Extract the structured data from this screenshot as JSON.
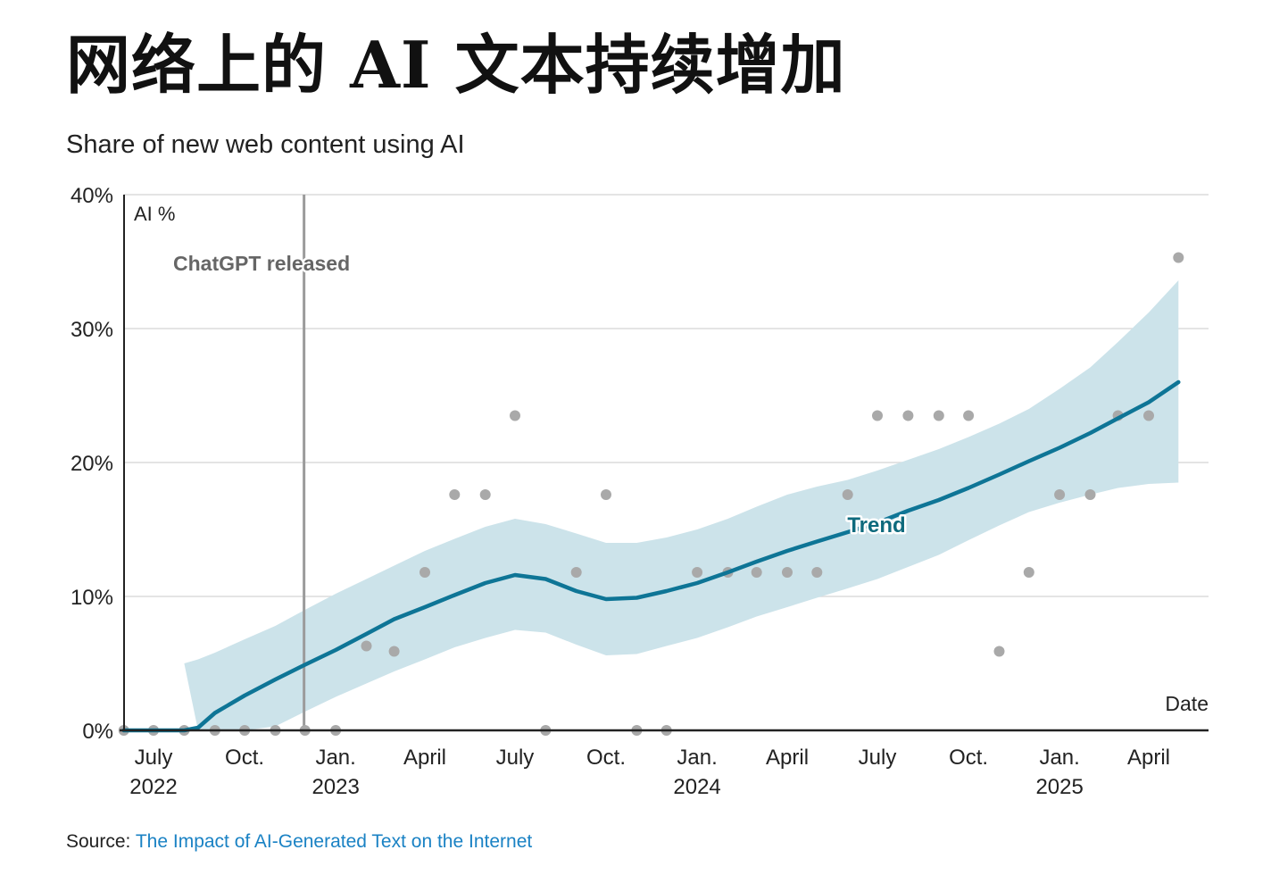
{
  "title": "网络上的 AI 文本持续增加",
  "subtitle": "Share of new web content using AI",
  "source": {
    "prefix": "Source:",
    "link_text": "The Impact of AI-Generated Text on the Internet"
  },
  "colors": {
    "trend": "#0e7596",
    "band": "#cce3ea",
    "points": "#a9a9a9",
    "annotation_line": "#9b9b9b",
    "annotation_text": "#666666",
    "trend_label": "#0e6a7d",
    "gridline": "#dcdcdc",
    "axis": "#222222",
    "source_link": "#1a82c4"
  },
  "chart_data": {
    "type": "scatter",
    "ylabel": "AI %",
    "xlabel": "Date",
    "ylim": [
      0,
      40
    ],
    "xlim": [
      "2022-06-10",
      "2025-06-30"
    ],
    "grid": true,
    "y_ticks": [
      {
        "value": 0,
        "label": "0%"
      },
      {
        "value": 10,
        "label": "10%"
      },
      {
        "value": 20,
        "label": "20%"
      },
      {
        "value": 30,
        "label": "30%"
      },
      {
        "value": 40,
        "label": "40%"
      }
    ],
    "x_ticks": [
      {
        "date": "2022-07-01",
        "label": "July",
        "year": "2022"
      },
      {
        "date": "2022-10-01",
        "label": "Oct.",
        "year": ""
      },
      {
        "date": "2023-01-01",
        "label": "Jan.",
        "year": "2023"
      },
      {
        "date": "2023-04-01",
        "label": "April",
        "year": ""
      },
      {
        "date": "2023-07-01",
        "label": "July",
        "year": ""
      },
      {
        "date": "2023-10-01",
        "label": "Oct.",
        "year": ""
      },
      {
        "date": "2024-01-01",
        "label": "Jan.",
        "year": "2024"
      },
      {
        "date": "2024-04-01",
        "label": "April",
        "year": ""
      },
      {
        "date": "2024-07-01",
        "label": "July",
        "year": ""
      },
      {
        "date": "2024-10-01",
        "label": "Oct.",
        "year": ""
      },
      {
        "date": "2025-01-01",
        "label": "Jan.",
        "year": "2025"
      },
      {
        "date": "2025-04-01",
        "label": "April",
        "year": ""
      }
    ],
    "annotation": {
      "label": "ChatGPT released",
      "date": "2022-11-30"
    },
    "points": [
      {
        "x": "2022-06-01",
        "y": 0
      },
      {
        "x": "2022-07-01",
        "y": 0
      },
      {
        "x": "2022-08-01",
        "y": 0
      },
      {
        "x": "2022-09-01",
        "y": 0
      },
      {
        "x": "2022-10-01",
        "y": 0
      },
      {
        "x": "2022-11-01",
        "y": 0
      },
      {
        "x": "2022-12-01",
        "y": 0
      },
      {
        "x": "2023-01-01",
        "y": 0
      },
      {
        "x": "2023-02-01",
        "y": 6.3
      },
      {
        "x": "2023-03-01",
        "y": 5.9
      },
      {
        "x": "2023-04-01",
        "y": 11.8
      },
      {
        "x": "2023-05-01",
        "y": 17.6
      },
      {
        "x": "2023-06-01",
        "y": 17.6
      },
      {
        "x": "2023-07-01",
        "y": 23.5
      },
      {
        "x": "2023-08-01",
        "y": 0
      },
      {
        "x": "2023-09-01",
        "y": 11.8
      },
      {
        "x": "2023-10-01",
        "y": 17.6
      },
      {
        "x": "2023-11-01",
        "y": 0
      },
      {
        "x": "2023-12-01",
        "y": 0
      },
      {
        "x": "2024-01-01",
        "y": 11.8
      },
      {
        "x": "2024-02-01",
        "y": 11.8
      },
      {
        "x": "2024-03-01",
        "y": 11.8
      },
      {
        "x": "2024-04-01",
        "y": 11.8
      },
      {
        "x": "2024-05-01",
        "y": 11.8
      },
      {
        "x": "2024-06-01",
        "y": 17.6
      },
      {
        "x": "2024-07-01",
        "y": 23.5
      },
      {
        "x": "2024-08-01",
        "y": 23.5
      },
      {
        "x": "2024-09-01",
        "y": 23.5
      },
      {
        "x": "2024-10-01",
        "y": 23.5
      },
      {
        "x": "2024-11-01",
        "y": 5.9
      },
      {
        "x": "2024-12-01",
        "y": 11.8
      },
      {
        "x": "2025-01-01",
        "y": 17.6
      },
      {
        "x": "2025-02-01",
        "y": 17.6
      },
      {
        "x": "2025-03-01",
        "y": 23.5
      },
      {
        "x": "2025-04-01",
        "y": 23.5
      },
      {
        "x": "2025-05-01",
        "y": 35.3
      }
    ],
    "trend": {
      "label": "Trend",
      "label_date": "2024-06-01",
      "series": [
        {
          "x": "2022-06-01",
          "y": 0.0,
          "low": 3.8,
          "high": 3.8
        },
        {
          "x": "2022-07-01",
          "y": 0.0,
          "low": 4.3,
          "high": 4.3
        },
        {
          "x": "2022-08-01",
          "y": 0.0,
          "low": 5.0,
          "high": 5.0
        },
        {
          "x": "2022-08-15",
          "y": 0.2,
          "low": 0.0,
          "high": 5.3
        },
        {
          "x": "2022-09-01",
          "y": 1.3,
          "low": 0.0,
          "high": 5.8
        },
        {
          "x": "2022-10-01",
          "y": 2.6,
          "low": 0.0,
          "high": 6.8
        },
        {
          "x": "2022-11-01",
          "y": 3.8,
          "low": 0.3,
          "high": 7.8
        },
        {
          "x": "2022-12-01",
          "y": 4.9,
          "low": 1.4,
          "high": 9.0
        },
        {
          "x": "2023-01-01",
          "y": 6.0,
          "low": 2.5,
          "high": 10.2
        },
        {
          "x": "2023-02-01",
          "y": 7.2,
          "low": 3.5,
          "high": 11.3
        },
        {
          "x": "2023-03-01",
          "y": 8.3,
          "low": 4.4,
          "high": 12.3
        },
        {
          "x": "2023-04-01",
          "y": 9.2,
          "low": 5.3,
          "high": 13.4
        },
        {
          "x": "2023-05-01",
          "y": 10.1,
          "low": 6.2,
          "high": 14.3
        },
        {
          "x": "2023-06-01",
          "y": 11.0,
          "low": 6.9,
          "high": 15.2
        },
        {
          "x": "2023-07-01",
          "y": 11.6,
          "low": 7.5,
          "high": 15.8
        },
        {
          "x": "2023-08-01",
          "y": 11.3,
          "low": 7.3,
          "high": 15.4
        },
        {
          "x": "2023-09-01",
          "y": 10.4,
          "low": 6.4,
          "high": 14.7
        },
        {
          "x": "2023-10-01",
          "y": 9.8,
          "low": 5.6,
          "high": 14.0
        },
        {
          "x": "2023-11-01",
          "y": 9.9,
          "low": 5.7,
          "high": 14.0
        },
        {
          "x": "2023-12-01",
          "y": 10.4,
          "low": 6.3,
          "high": 14.4
        },
        {
          "x": "2024-01-01",
          "y": 11.0,
          "low": 6.9,
          "high": 15.0
        },
        {
          "x": "2024-02-01",
          "y": 11.8,
          "low": 7.7,
          "high": 15.8
        },
        {
          "x": "2024-03-01",
          "y": 12.6,
          "low": 8.5,
          "high": 16.7
        },
        {
          "x": "2024-04-01",
          "y": 13.4,
          "low": 9.2,
          "high": 17.6
        },
        {
          "x": "2024-05-01",
          "y": 14.1,
          "low": 9.9,
          "high": 18.2
        },
        {
          "x": "2024-06-01",
          "y": 14.8,
          "low": 10.6,
          "high": 18.7
        },
        {
          "x": "2024-07-01",
          "y": 15.5,
          "low": 11.3,
          "high": 19.4
        },
        {
          "x": "2024-08-01",
          "y": 16.4,
          "low": 12.2,
          "high": 20.2
        },
        {
          "x": "2024-09-01",
          "y": 17.2,
          "low": 13.1,
          "high": 21.0
        },
        {
          "x": "2024-10-01",
          "y": 18.1,
          "low": 14.2,
          "high": 21.9
        },
        {
          "x": "2024-11-01",
          "y": 19.1,
          "low": 15.3,
          "high": 22.9
        },
        {
          "x": "2024-12-01",
          "y": 20.1,
          "low": 16.3,
          "high": 24.0
        },
        {
          "x": "2025-01-01",
          "y": 21.1,
          "low": 17.0,
          "high": 25.5
        },
        {
          "x": "2025-02-01",
          "y": 22.2,
          "low": 17.6,
          "high": 27.1
        },
        {
          "x": "2025-03-01",
          "y": 23.3,
          "low": 18.1,
          "high": 29.0
        },
        {
          "x": "2025-04-01",
          "y": 24.5,
          "low": 18.4,
          "high": 31.2
        },
        {
          "x": "2025-05-01",
          "y": 26.0,
          "low": 18.5,
          "high": 33.6
        }
      ]
    }
  }
}
